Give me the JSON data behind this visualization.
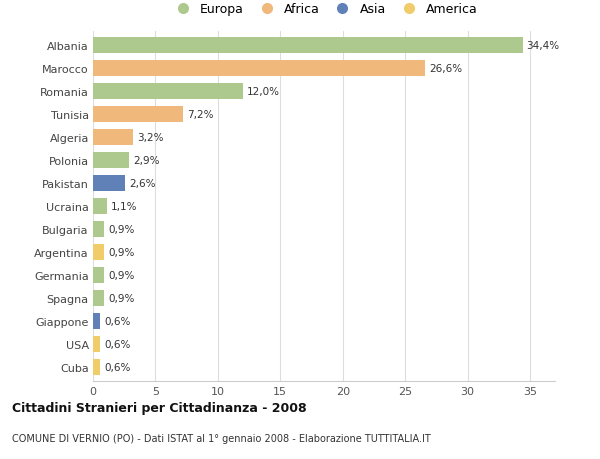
{
  "categories": [
    "Albania",
    "Marocco",
    "Romania",
    "Tunisia",
    "Algeria",
    "Polonia",
    "Pakistan",
    "Ucraina",
    "Bulgaria",
    "Argentina",
    "Germania",
    "Spagna",
    "Giappone",
    "USA",
    "Cuba"
  ],
  "values": [
    34.4,
    26.6,
    12.0,
    7.2,
    3.2,
    2.9,
    2.6,
    1.1,
    0.9,
    0.9,
    0.9,
    0.9,
    0.6,
    0.6,
    0.6
  ],
  "labels": [
    "34,4%",
    "26,6%",
    "12,0%",
    "7,2%",
    "3,2%",
    "2,9%",
    "2,6%",
    "1,1%",
    "0,9%",
    "0,9%",
    "0,9%",
    "0,9%",
    "0,6%",
    "0,6%",
    "0,6%"
  ],
  "continent": [
    "Europa",
    "Africa",
    "Europa",
    "Africa",
    "Africa",
    "Europa",
    "Asia",
    "Europa",
    "Europa",
    "America",
    "Europa",
    "Europa",
    "Asia",
    "America",
    "America"
  ],
  "colors": {
    "Europa": "#aec98d",
    "Africa": "#f0b87a",
    "Asia": "#6080b8",
    "America": "#f0cc6a"
  },
  "legend_order": [
    "Europa",
    "Africa",
    "Asia",
    "America"
  ],
  "background_color": "#ffffff",
  "grid_color": "#dddddd",
  "title": "Cittadini Stranieri per Cittadinanza - 2008",
  "subtitle": "COMUNE DI VERNIO (PO) - Dati ISTAT al 1° gennaio 2008 - Elaborazione TUTTITALIA.IT",
  "xlim": [
    0,
    37
  ],
  "xticks": [
    0,
    5,
    10,
    15,
    20,
    25,
    30,
    35
  ]
}
